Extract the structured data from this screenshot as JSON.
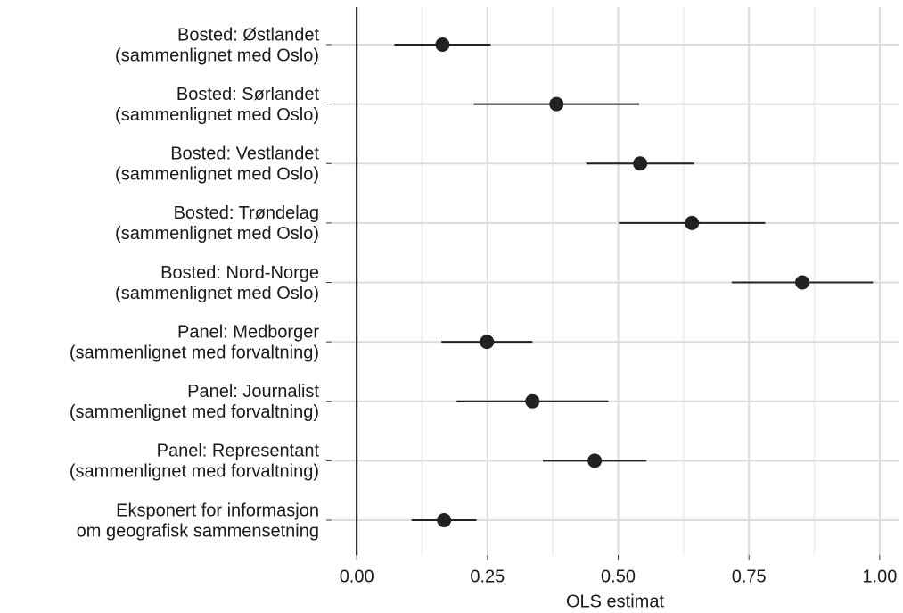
{
  "chart_data": {
    "type": "dot-whisker",
    "xlabel": "OLS estimat",
    "categories": [
      [
        "Bosted: Østlandet",
        "(sammenlignet med Oslo)"
      ],
      [
        "Bosted: Sørlandet",
        "(sammenlignet med Oslo)"
      ],
      [
        "Bosted: Vestlandet",
        "(sammenlignet med Oslo)"
      ],
      [
        "Bosted: Trøndelag",
        "(sammenlignet med Oslo)"
      ],
      [
        "Bosted: Nord-Norge",
        "(sammenlignet med Oslo)"
      ],
      [
        "Panel: Medborger",
        "(sammenlignet med forvaltning)"
      ],
      [
        "Panel: Journalist",
        "(sammenlignet med forvaltning)"
      ],
      [
        "Panel: Representant",
        "(sammenlignet med forvaltning)"
      ],
      [
        "Eksponert for informasjon",
        "om geografisk sammensetning"
      ]
    ],
    "values": [
      0.164,
      0.382,
      0.542,
      0.641,
      0.852,
      0.249,
      0.336,
      0.455,
      0.167
    ],
    "errors": [
      0.092,
      0.158,
      0.103,
      0.14,
      0.135,
      0.087,
      0.145,
      0.099,
      0.062
    ],
    "color": "#222222",
    "xlim": [
      -0.048,
      1.036
    ],
    "xticks": [
      {
        "value": 0,
        "label": "0.00"
      },
      {
        "value": 0.25,
        "label": "0.25"
      },
      {
        "value": 0.5,
        "label": "0.50"
      },
      {
        "value": 0.75,
        "label": "0.75"
      },
      {
        "value": 1,
        "label": "1.00"
      }
    ],
    "minor_xticks": [
      0.125,
      0.375,
      0.625,
      0.875
    ],
    "vline": 0,
    "grid": true
  }
}
